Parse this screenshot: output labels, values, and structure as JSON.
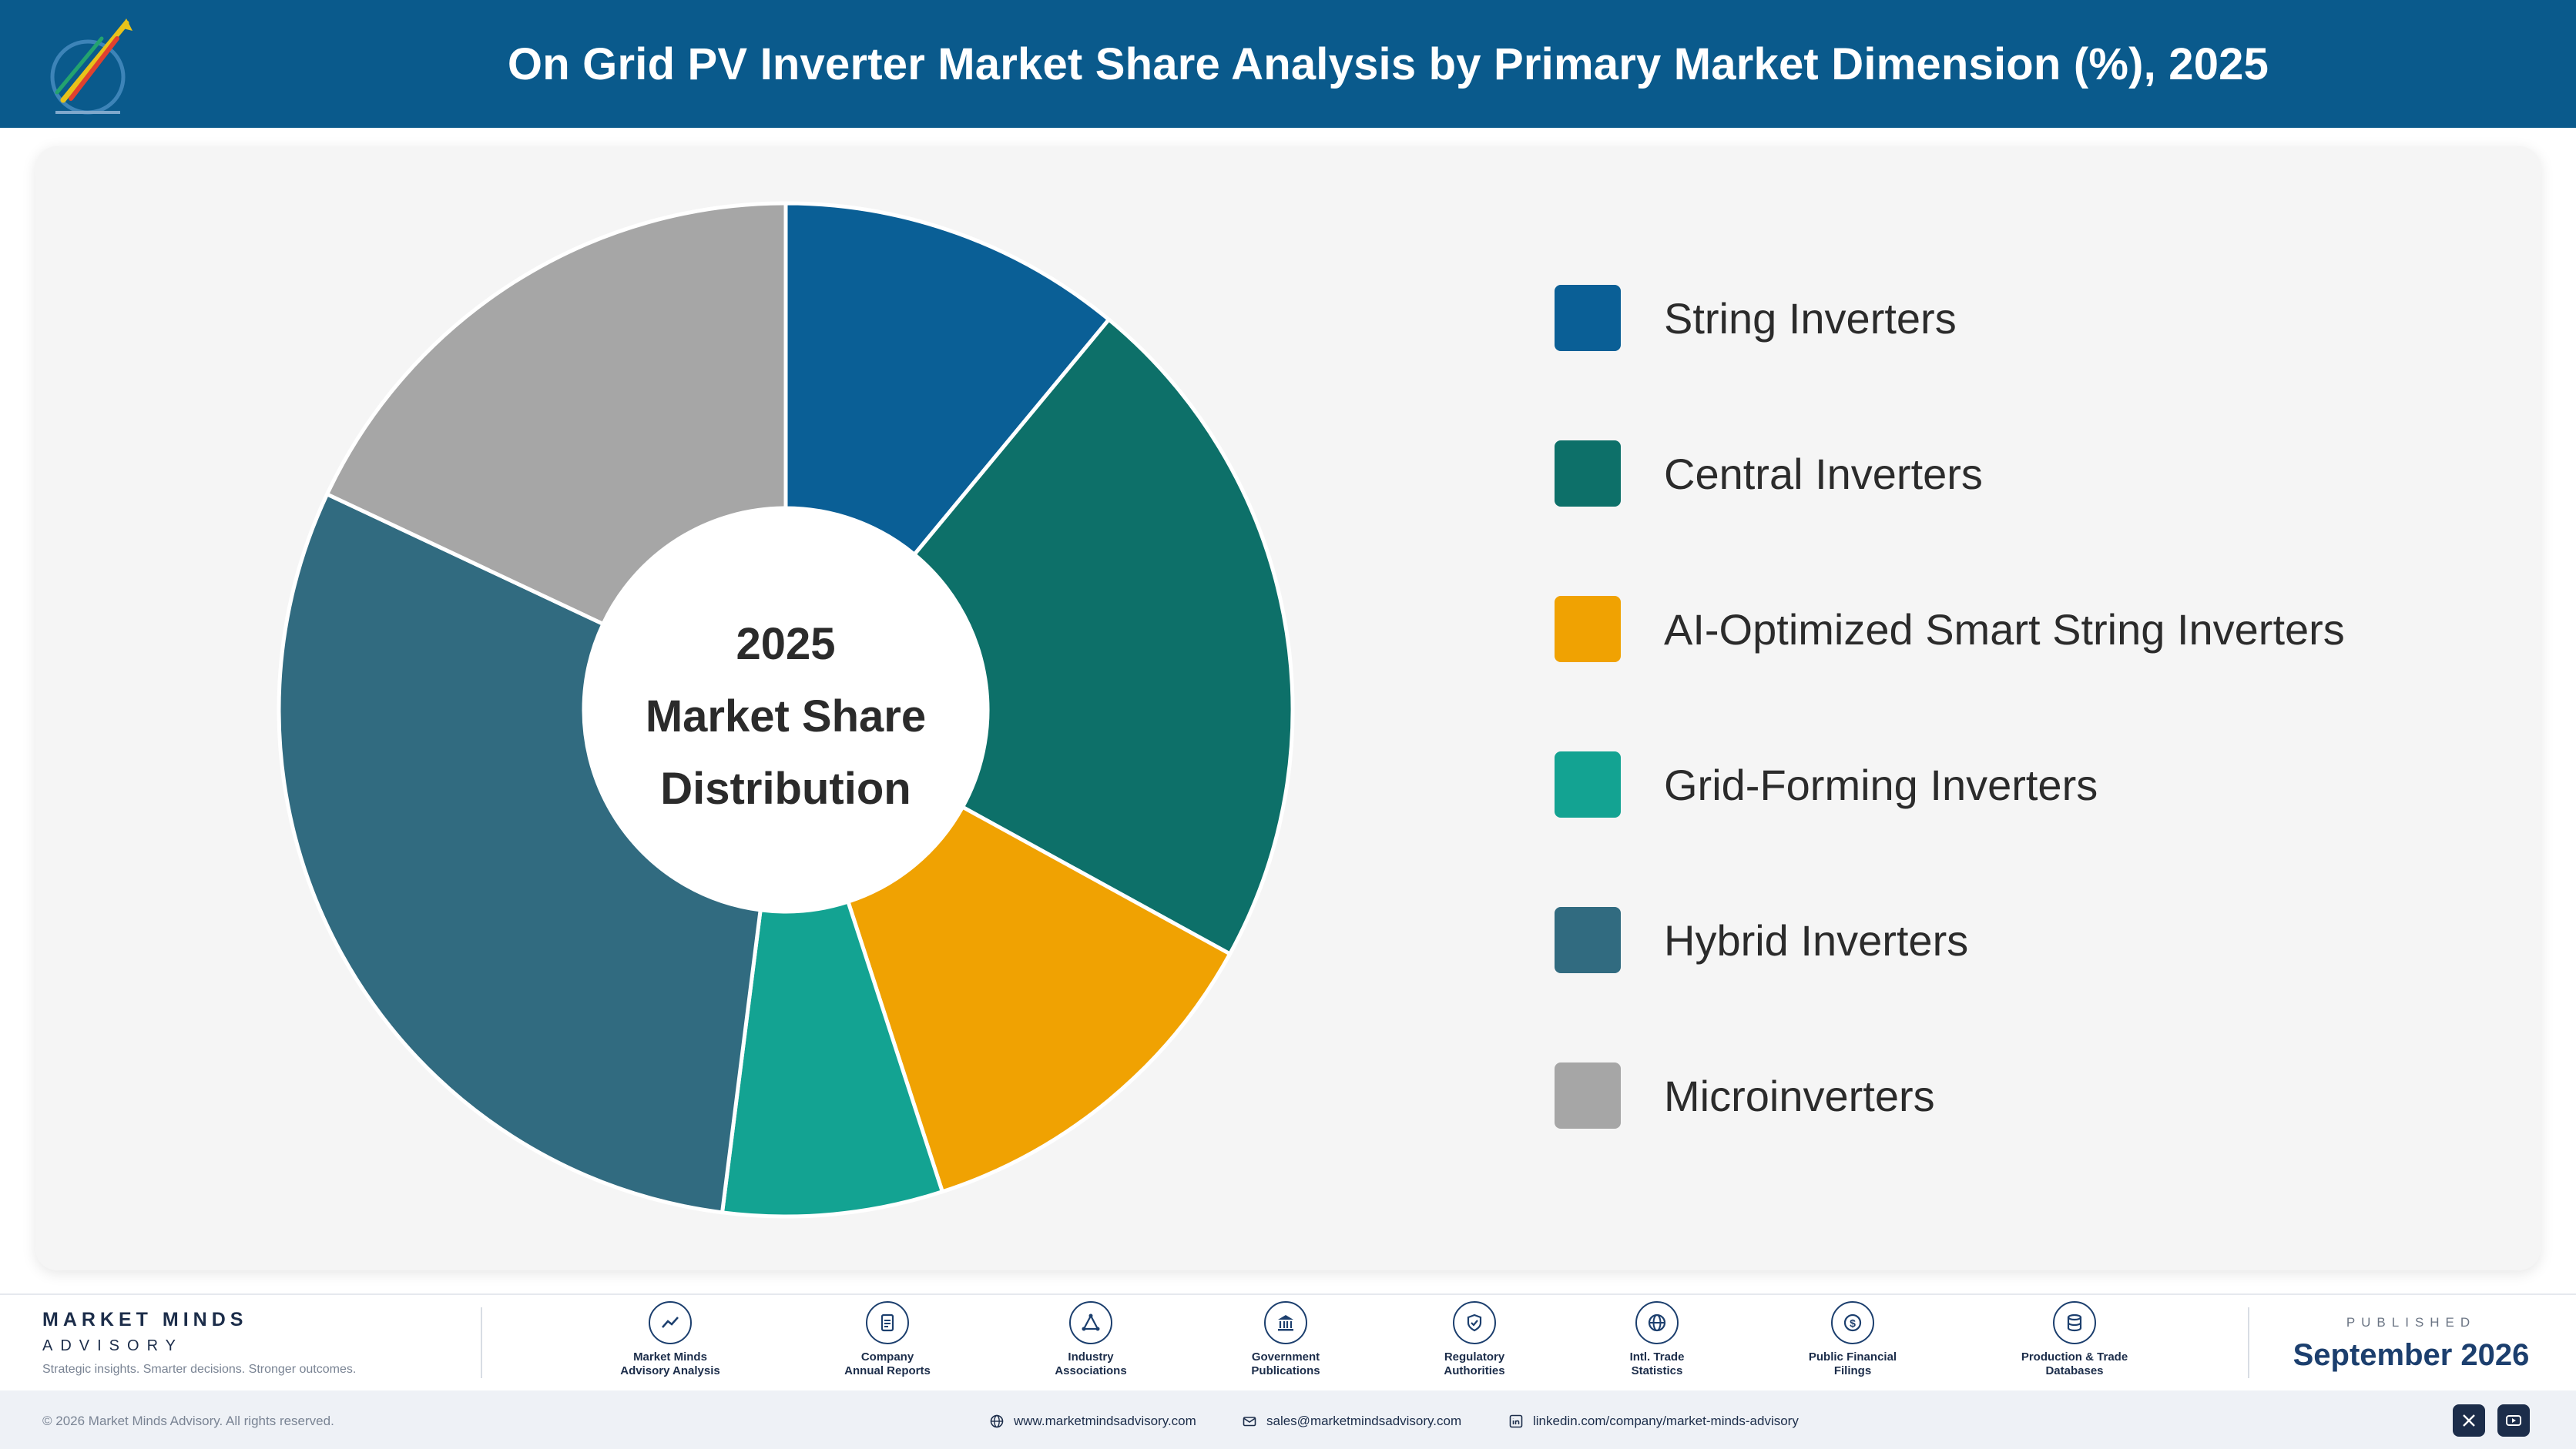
{
  "header": {
    "title": "On Grid PV Inverter Market Share Analysis by Primary Market Dimension (%), 2025"
  },
  "chart_data": {
    "type": "pie",
    "title": "On Grid PV Inverter Market Share Analysis by Primary Market Dimension (%), 2025",
    "center_label": [
      "2025",
      "Market Share",
      "Distribution"
    ],
    "categories": [
      "String Inverters",
      "Central Inverters",
      "AI-Optimized Smart String Inverters",
      "Grid-Forming Inverters",
      "Hybrid Inverters",
      "Microinverters"
    ],
    "values": [
      11,
      22,
      12,
      7,
      30,
      18
    ],
    "colors": [
      "#0a5f96",
      "#0d7069",
      "#f0a202",
      "#13a392",
      "#316b80",
      "#a6a6a6"
    ],
    "legend_position": "right"
  },
  "footer": {
    "brand_name": "MARKET MINDS",
    "brand_sub": "ADVISORY",
    "tagline": "Strategic insights. Smarter decisions. Stronger outcomes.",
    "sources": [
      {
        "icon": "trend-chart-icon",
        "line1": "Market Minds",
        "line2": "Advisory Analysis"
      },
      {
        "icon": "document-icon",
        "line1": "Company",
        "line2": "Annual Reports"
      },
      {
        "icon": "network-icon",
        "line1": "Industry",
        "line2": "Associations"
      },
      {
        "icon": "government-building-icon",
        "line1": "Government",
        "line2": "Publications"
      },
      {
        "icon": "shield-check-icon",
        "line1": "Regulatory",
        "line2": "Authorities"
      },
      {
        "icon": "globe-icon",
        "line1": "Intl. Trade",
        "line2": "Statistics"
      },
      {
        "icon": "dollar-coin-icon",
        "line1": "Public Financial",
        "line2": "Filings"
      },
      {
        "icon": "database-icon",
        "line1": "Production & Trade",
        "line2": "Databases"
      }
    ],
    "published_label": "PUBLISHED",
    "published_date": "September 2026",
    "copyright": "© 2026 Market Minds Advisory. All rights reserved.",
    "website": "www.marketmindsadvisory.com",
    "email": "sales@marketmindsadvisory.com",
    "linkedin": "linkedin.com/company/market-minds-advisory"
  }
}
